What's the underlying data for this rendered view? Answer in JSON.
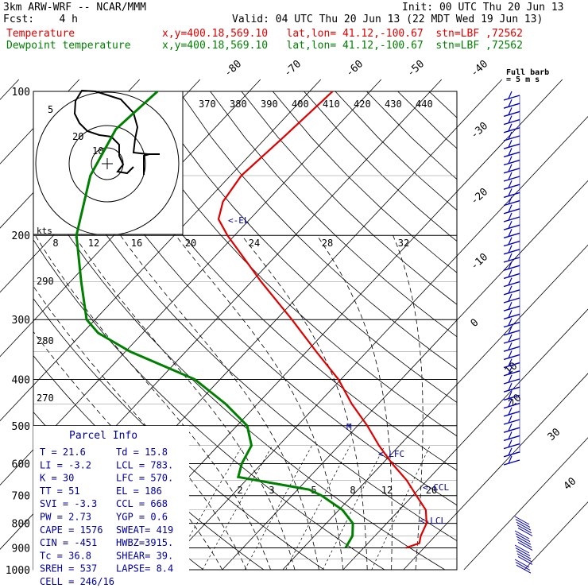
{
  "header": {
    "model": "3km ARW-WRF -- NCAR/MMM",
    "forecast": "Fcst:    4 h",
    "init": "Init: 00 UTC Thu 20 Jun 13",
    "valid": "Valid: 04 UTC Thu 20 Jun 13 (22 MDT Wed 19 Jun 13)",
    "temp_label": "Temperature",
    "dew_label": "Dewpoint temperature",
    "loc": "x,y=400.18,569.10   lat,lon= 41.12,-100.67  stn=LBF ,72562",
    "temp_color": "#e00000",
    "dew_color": "#008000"
  },
  "barb_legend": {
    "title": "Full barb",
    "units": "= 5 m s"
  },
  "pressure_labels": [
    "100",
    "200",
    "300",
    "400",
    "500",
    "600",
    "700",
    "800",
    "900",
    "1000"
  ],
  "temp_labels": [
    "-80",
    "-70",
    "-60",
    "-50",
    "-40",
    "-30",
    "-20",
    "-10",
    "0",
    "10",
    "20",
    "30",
    "40"
  ],
  "theta_labels": [
    "370",
    "380",
    "390",
    "400",
    "410",
    "420",
    "430",
    "440"
  ],
  "mixing_labels": [
    "8",
    "12",
    "16",
    "20",
    "24",
    "28",
    "32"
  ],
  "mixing_labels_low": [
    "2",
    "3",
    "5",
    "8",
    "12",
    "20"
  ],
  "theta_left": [
    "290",
    "280",
    "270"
  ],
  "hodograph": {
    "kts": "kts",
    "rings": [
      "5",
      "10",
      "20"
    ]
  },
  "markers": {
    "el": "<-EL",
    "lfc": "<-LFC",
    "ccl": "<-CCL",
    "lcl": "<-LCL",
    "m": "M"
  },
  "parcel": {
    "title": "Parcel Info",
    "rows": [
      [
        "T    =  21.6",
        "Td   =  15.8"
      ],
      [
        "LI   =  -3.2",
        "LCL  =  783."
      ],
      [
        "K    =    30",
        "LFC  =  570."
      ],
      [
        "TT   =    51",
        "EL   =   186"
      ],
      [
        "SVI  =  -3.3",
        "CCL  =   668"
      ],
      [
        "PW   =  2.73",
        "YGP  =   0.6"
      ],
      [
        "CAPE =  1576",
        "SWEAT=   419"
      ],
      [
        "CIN  =  -451",
        "HWBZ=3915."
      ],
      [
        "Tc   =  36.8",
        "SHEAR=   39."
      ],
      [
        "SREH =   537",
        "LAPSE=   8.4"
      ],
      [
        "CELL = 246/16",
        ""
      ]
    ]
  },
  "chart_data": {
    "type": "line",
    "title": "",
    "xlabel": "",
    "ylabel": "",
    "y_scale": "log-pressure",
    "ylim": [
      1000,
      100
    ],
    "series": [
      {
        "name": "Temperature",
        "points": [
          [
            900,
            27.0
          ],
          [
            880,
            28.5
          ],
          [
            850,
            27.6
          ],
          [
            800,
            26.6
          ],
          [
            750,
            24.4
          ],
          [
            700,
            20.6
          ],
          [
            650,
            16.6
          ],
          [
            600,
            11.6
          ],
          [
            550,
            6.6
          ],
          [
            500,
            1.6
          ],
          [
            450,
            -4.4
          ],
          [
            400,
            -10.4
          ],
          [
            350,
            -18.4
          ],
          [
            300,
            -27.4
          ],
          [
            250,
            -38.4
          ],
          [
            200,
            -51.2
          ],
          [
            185,
            -55.2
          ],
          [
            170,
            -57.2
          ],
          [
            150,
            -58.2
          ],
          [
            125,
            -57.2
          ],
          [
            100,
            -56.2
          ]
        ]
      },
      {
        "name": "Dewpoint temperature",
        "points": [
          [
            900,
            17.0
          ],
          [
            850,
            16.3
          ],
          [
            800,
            14.4
          ],
          [
            750,
            10.6
          ],
          [
            700,
            4.9
          ],
          [
            680,
            1.9
          ],
          [
            640,
            -11.8
          ],
          [
            600,
            -13.3
          ],
          [
            550,
            -14.5
          ],
          [
            500,
            -18.3
          ],
          [
            450,
            -25.3
          ],
          [
            400,
            -34.2
          ],
          [
            350,
            -49.2
          ],
          [
            320,
            -57.4
          ],
          [
            300,
            -61.4
          ],
          [
            250,
            -68.2
          ],
          [
            200,
            -76.2
          ],
          [
            150,
            -83.2
          ],
          [
            120,
            -86.2
          ],
          [
            100,
            -85.2
          ]
        ]
      }
    ]
  }
}
